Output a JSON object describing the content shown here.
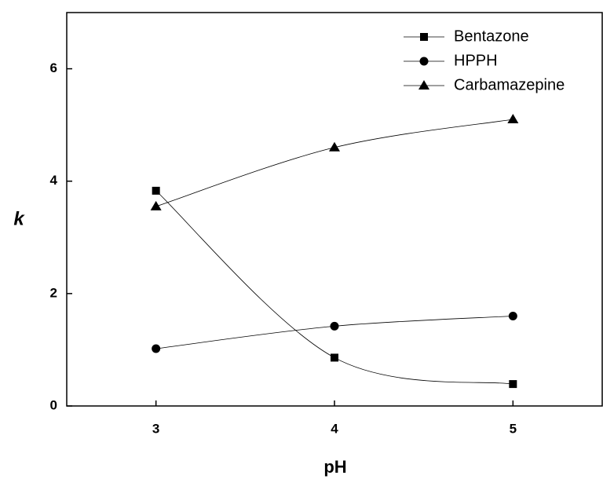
{
  "chart_data": {
    "type": "line",
    "x_label": "pH",
    "y_label": "k",
    "x": [
      3,
      4,
      5
    ],
    "series": [
      {
        "name": "Bentazone",
        "color": "#000000",
        "marker": "square",
        "values": [
          3.83,
          0.86,
          0.39
        ]
      },
      {
        "name": "HPPH",
        "color": "#000000",
        "marker": "circle",
        "values": [
          1.02,
          1.42,
          1.6
        ]
      },
      {
        "name": "Carbamazepine",
        "color": "#000000",
        "marker": "triangle",
        "values": [
          3.55,
          4.6,
          5.1
        ]
      }
    ],
    "xlim": [
      2.5,
      5.5
    ],
    "xticks": [
      3,
      4,
      5
    ],
    "ylim": [
      0,
      7
    ],
    "yticks": [
      0,
      2,
      4,
      6
    ],
    "grid": false,
    "smooth": true,
    "legend": "upper right"
  }
}
